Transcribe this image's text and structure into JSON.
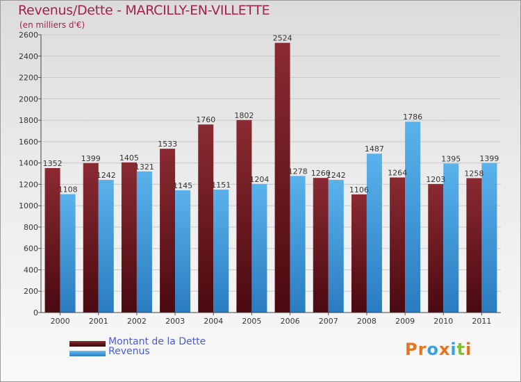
{
  "title": "Revenus/Dette - MARCILLY-EN-VILLETTE",
  "subtitle": "(en milliers d'€)",
  "logo_text": "Proxiti",
  "colors": {
    "title": "#a3224a",
    "series1": "#7a1a22",
    "series2": "#4aa3e0",
    "legend_text": "#4a5bd6"
  },
  "chart_data": {
    "type": "bar",
    "categories": [
      "2000",
      "2001",
      "2002",
      "2003",
      "2004",
      "2005",
      "2006",
      "2007",
      "2008",
      "2009",
      "2010",
      "2011"
    ],
    "series": [
      {
        "name": "Montant de la Dette",
        "values": [
          1352,
          1399,
          1405,
          1533,
          1760,
          1802,
          2524,
          1260,
          1106,
          1264,
          1203,
          1258
        ]
      },
      {
        "name": "Revenus",
        "values": [
          1108,
          1242,
          1321,
          1145,
          1151,
          1204,
          1278,
          1242,
          1487,
          1786,
          1395,
          1399
        ]
      }
    ],
    "ylim": [
      0,
      2600
    ],
    "yticks": [
      0,
      200,
      400,
      600,
      800,
      1000,
      1200,
      1400,
      1600,
      1800,
      2000,
      2200,
      2400,
      2600
    ],
    "grid": true,
    "legend_position": "bottom-left"
  }
}
